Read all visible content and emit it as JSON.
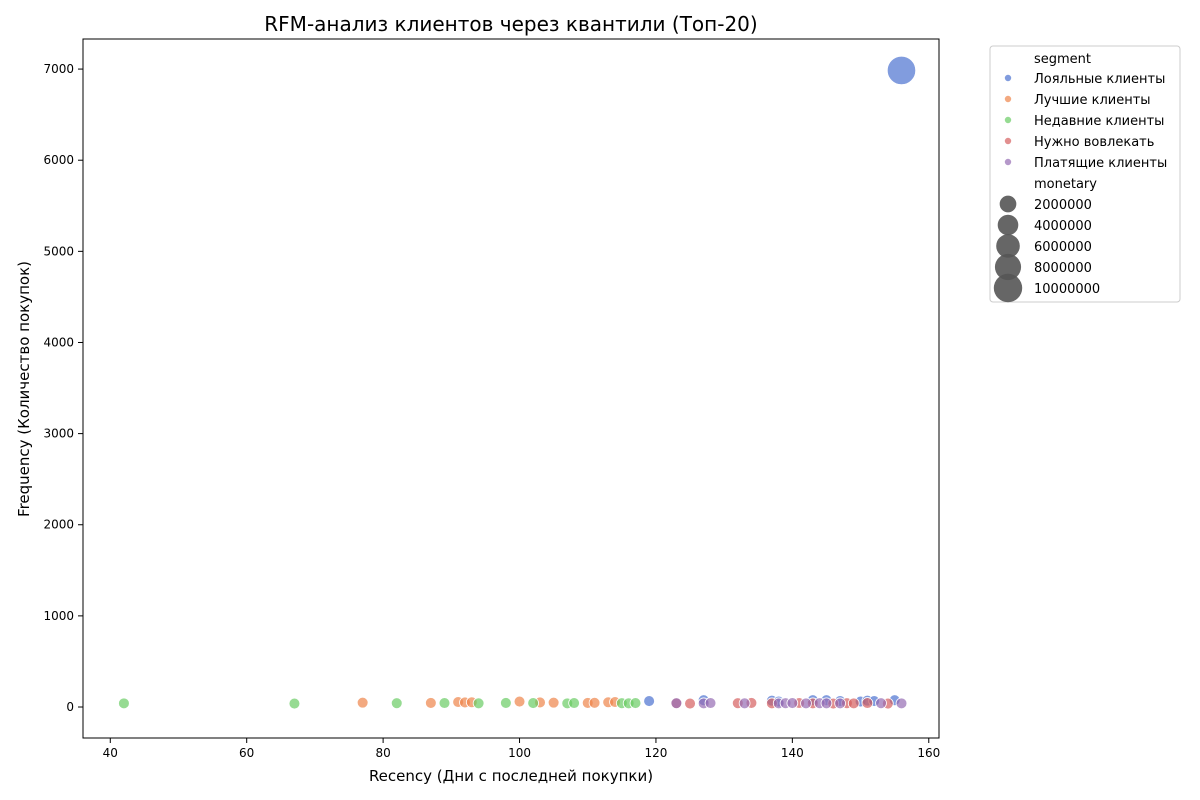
{
  "chart_data": {
    "type": "scatter",
    "title": "RFM-анализ клиентов через квантили (Топ-20)",
    "xlabel": "Recency (Дни с последней покупки)",
    "ylabel": "Frequency (Количество покупок)",
    "xlim": [
      36,
      161.5
    ],
    "ylim": [
      -340,
      7330
    ],
    "xticks": [
      40,
      60,
      80,
      100,
      120,
      140,
      160
    ],
    "yticks": [
      0,
      1000,
      2000,
      3000,
      4000,
      5000,
      6000,
      7000
    ],
    "grid": false,
    "legend": {
      "placement": "outside-top-right",
      "hue_title": "segment",
      "size_title": "monetary",
      "sizes": [
        2000000,
        4000000,
        6000000,
        8000000,
        10000000
      ]
    },
    "series": [
      {
        "name": "Лояльные клиенты",
        "color": "#4c72d0",
        "points": [
          {
            "x": 156,
            "y": 6985,
            "size": 10000000
          },
          {
            "x": 119,
            "y": 65,
            "size": 300000
          },
          {
            "x": 127,
            "y": 75,
            "size": 300000
          },
          {
            "x": 137,
            "y": 70,
            "size": 300000
          },
          {
            "x": 138,
            "y": 60,
            "size": 300000
          },
          {
            "x": 143,
            "y": 75,
            "size": 300000
          },
          {
            "x": 145,
            "y": 75,
            "size": 300000
          },
          {
            "x": 147,
            "y": 65,
            "size": 300000
          },
          {
            "x": 150,
            "y": 60,
            "size": 300000
          },
          {
            "x": 151,
            "y": 70,
            "size": 300000
          },
          {
            "x": 152,
            "y": 65,
            "size": 300000
          },
          {
            "x": 155,
            "y": 75,
            "size": 300000
          }
        ]
      },
      {
        "name": "Лучшие клиенты",
        "color": "#ee854a",
        "points": [
          {
            "x": 77,
            "y": 48,
            "size": 300000
          },
          {
            "x": 87,
            "y": 45,
            "size": 300000
          },
          {
            "x": 91,
            "y": 55,
            "size": 300000
          },
          {
            "x": 92,
            "y": 50,
            "size": 300000
          },
          {
            "x": 93,
            "y": 52,
            "size": 300000
          },
          {
            "x": 100,
            "y": 60,
            "size": 300000
          },
          {
            "x": 103,
            "y": 50,
            "size": 300000
          },
          {
            "x": 105,
            "y": 48,
            "size": 300000
          },
          {
            "x": 110,
            "y": 45,
            "size": 300000
          },
          {
            "x": 111,
            "y": 46,
            "size": 300000
          },
          {
            "x": 113,
            "y": 52,
            "size": 300000
          },
          {
            "x": 114,
            "y": 55,
            "size": 300000
          }
        ]
      },
      {
        "name": "Недавние клиенты",
        "color": "#6acc64",
        "points": [
          {
            "x": 42,
            "y": 40,
            "size": 300000
          },
          {
            "x": 67,
            "y": 38,
            "size": 300000
          },
          {
            "x": 82,
            "y": 42,
            "size": 300000
          },
          {
            "x": 89,
            "y": 44,
            "size": 300000
          },
          {
            "x": 94,
            "y": 41,
            "size": 300000
          },
          {
            "x": 98,
            "y": 45,
            "size": 300000
          },
          {
            "x": 102,
            "y": 43,
            "size": 300000
          },
          {
            "x": 107,
            "y": 40,
            "size": 300000
          },
          {
            "x": 108,
            "y": 44,
            "size": 300000
          },
          {
            "x": 115,
            "y": 42,
            "size": 300000
          },
          {
            "x": 116,
            "y": 41,
            "size": 300000
          },
          {
            "x": 117,
            "y": 43,
            "size": 300000
          }
        ]
      },
      {
        "name": "Нужно вовлекать",
        "color": "#d65f5f",
        "points": [
          {
            "x": 123,
            "y": 40,
            "size": 300000
          },
          {
            "x": 125,
            "y": 38,
            "size": 300000
          },
          {
            "x": 132,
            "y": 42,
            "size": 300000
          },
          {
            "x": 134,
            "y": 45,
            "size": 300000
          },
          {
            "x": 137,
            "y": 40,
            "size": 300000
          },
          {
            "x": 141,
            "y": 44,
            "size": 300000
          },
          {
            "x": 143,
            "y": 40,
            "size": 300000
          },
          {
            "x": 146,
            "y": 38,
            "size": 300000
          },
          {
            "x": 148,
            "y": 42,
            "size": 300000
          },
          {
            "x": 149,
            "y": 40,
            "size": 300000
          },
          {
            "x": 151,
            "y": 44,
            "size": 300000
          },
          {
            "x": 154,
            "y": 38,
            "size": 300000
          }
        ]
      },
      {
        "name": "Платящие клиенты",
        "color": "#956cb4",
        "points": [
          {
            "x": 123,
            "y": 42,
            "size": 300000
          },
          {
            "x": 127,
            "y": 40,
            "size": 300000
          },
          {
            "x": 128,
            "y": 44,
            "size": 300000
          },
          {
            "x": 133,
            "y": 41,
            "size": 300000
          },
          {
            "x": 138,
            "y": 40,
            "size": 300000
          },
          {
            "x": 139,
            "y": 42,
            "size": 300000
          },
          {
            "x": 140,
            "y": 43,
            "size": 300000
          },
          {
            "x": 142,
            "y": 40,
            "size": 300000
          },
          {
            "x": 144,
            "y": 42,
            "size": 300000
          },
          {
            "x": 145,
            "y": 41,
            "size": 300000
          },
          {
            "x": 147,
            "y": 40,
            "size": 300000
          },
          {
            "x": 153,
            "y": 42,
            "size": 300000
          },
          {
            "x": 156,
            "y": 40,
            "size": 300000
          }
        ]
      }
    ]
  }
}
